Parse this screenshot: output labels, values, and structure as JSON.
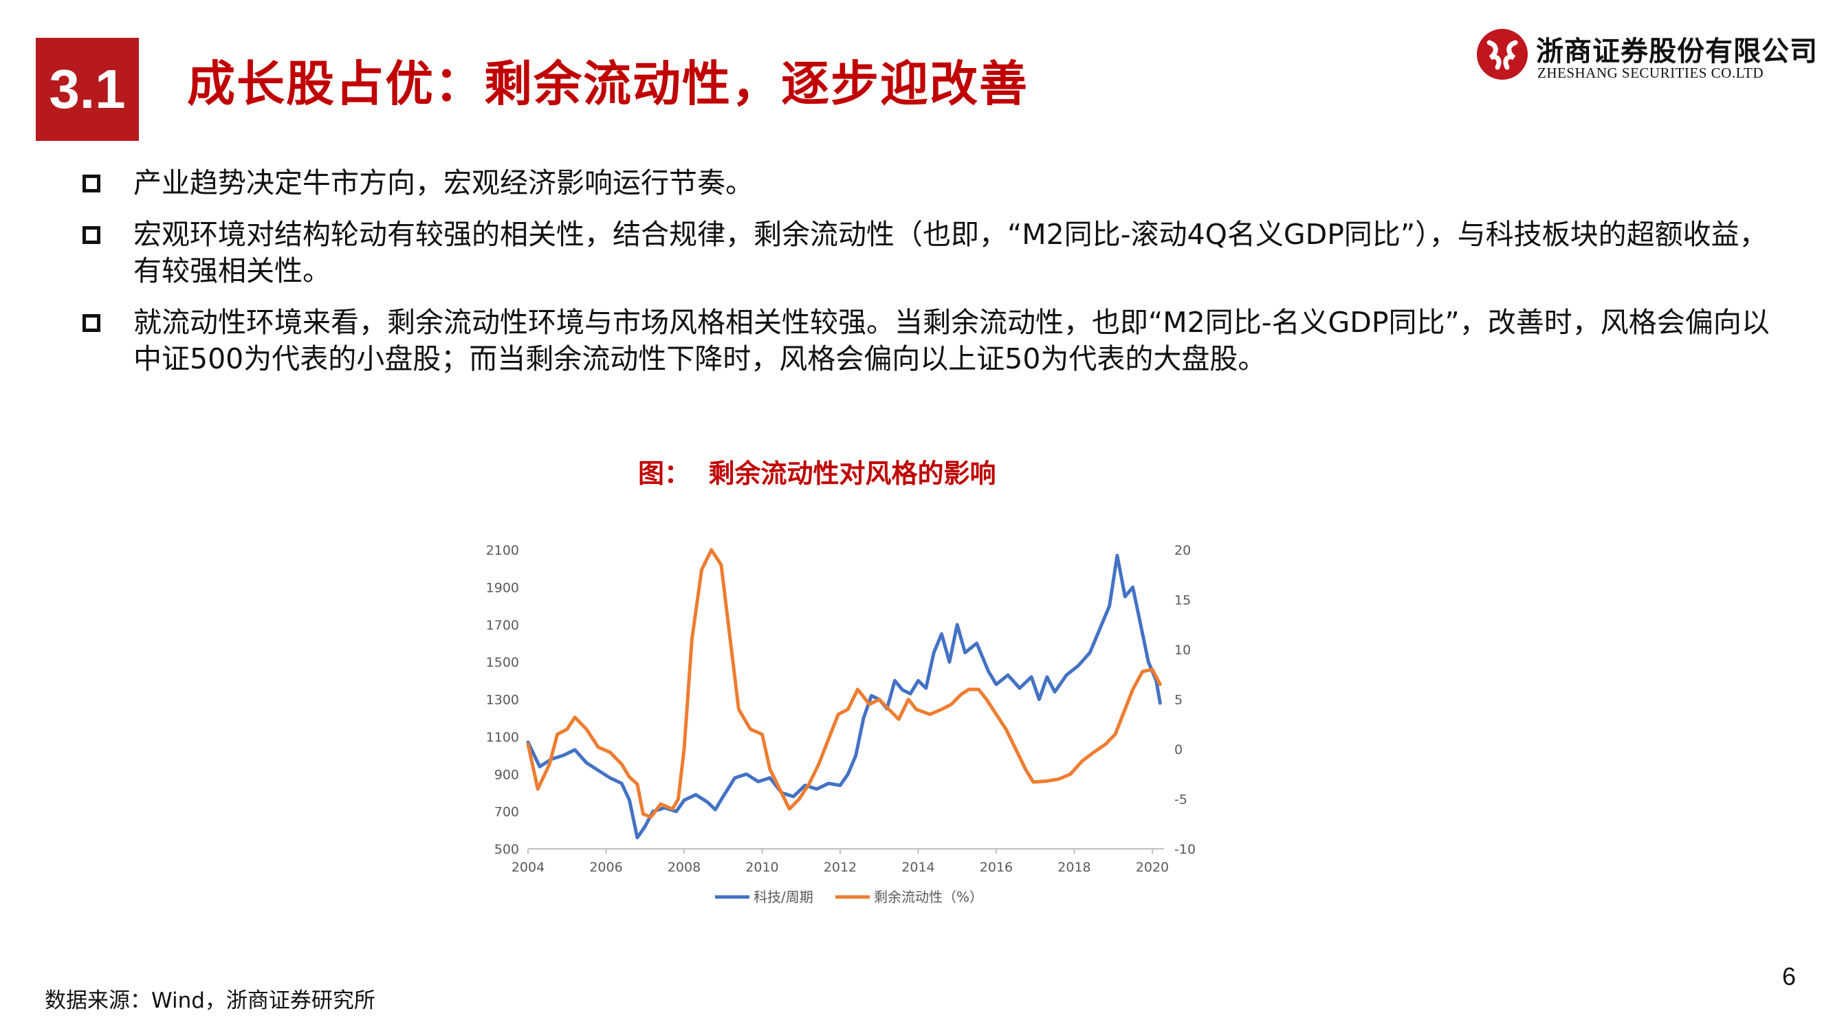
{
  "header": {
    "section_number": "3.1",
    "title": "成长股占优：剩余流动性，逐步迎改善"
  },
  "logo": {
    "name_cn": "浙商证券股份有限公司",
    "name_en": "ZHESHANG SECURITIES CO.LTD",
    "brand_color": "#c0161d"
  },
  "bullets": [
    "产业趋势决定牛市方向，宏观经济影响运行节奏。",
    "宏观环境对结构轮动有较强的相关性，结合规律，剩余流动性（也即，“M2同比-滚动4Q名义GDP同比”），与科技板块的超额收益，有较强相关性。",
    "就流动性环境来看，剩余流动性环境与市场风格相关性较强。当剩余流动性，也即“M2同比-名义GDP同比”，改善时，风格会偏向以中证500为代表的小盘股；而当剩余流动性下降时，风格会偏向以上证50为代表的大盘股。"
  ],
  "figure_title": "图：  剩余流动性对风格的影响",
  "chart_data": {
    "type": "line",
    "x_ticks": [
      "2004",
      "2006",
      "2008",
      "2010",
      "2012",
      "2014",
      "2016",
      "2018",
      "2020"
    ],
    "xlim": [
      2004,
      2020.3
    ],
    "y_left_ticks": [
      "2100",
      "1900",
      "1700",
      "1500",
      "1300",
      "1100",
      "900",
      "700",
      "500"
    ],
    "y_left_lim": [
      500,
      2100
    ],
    "y_right_ticks": [
      "20",
      "15",
      "10",
      "5",
      "0",
      "-5",
      "-10"
    ],
    "y_right_lim": [
      -10,
      20
    ],
    "grid": false,
    "legend_position": "bottom",
    "series": [
      {
        "name": "科技/周期",
        "axis": "left",
        "color": "#4472c4",
        "points": [
          [
            2004.0,
            1070
          ],
          [
            2004.3,
            940
          ],
          [
            2004.6,
            980
          ],
          [
            2004.9,
            1000
          ],
          [
            2005.2,
            1030
          ],
          [
            2005.5,
            960
          ],
          [
            2005.8,
            920
          ],
          [
            2006.1,
            880
          ],
          [
            2006.4,
            850
          ],
          [
            2006.6,
            760
          ],
          [
            2006.8,
            560
          ],
          [
            2007.0,
            620
          ],
          [
            2007.2,
            700
          ],
          [
            2007.5,
            720
          ],
          [
            2007.8,
            700
          ],
          [
            2008.0,
            760
          ],
          [
            2008.3,
            790
          ],
          [
            2008.6,
            750
          ],
          [
            2008.8,
            710
          ],
          [
            2009.0,
            780
          ],
          [
            2009.3,
            880
          ],
          [
            2009.6,
            900
          ],
          [
            2009.9,
            860
          ],
          [
            2010.2,
            880
          ],
          [
            2010.5,
            800
          ],
          [
            2010.8,
            780
          ],
          [
            2011.1,
            840
          ],
          [
            2011.4,
            820
          ],
          [
            2011.7,
            850
          ],
          [
            2012.0,
            840
          ],
          [
            2012.2,
            900
          ],
          [
            2012.4,
            1000
          ],
          [
            2012.6,
            1200
          ],
          [
            2012.8,
            1320
          ],
          [
            2013.0,
            1300
          ],
          [
            2013.2,
            1250
          ],
          [
            2013.4,
            1400
          ],
          [
            2013.6,
            1350
          ],
          [
            2013.8,
            1330
          ],
          [
            2014.0,
            1400
          ],
          [
            2014.2,
            1360
          ],
          [
            2014.4,
            1550
          ],
          [
            2014.6,
            1650
          ],
          [
            2014.8,
            1500
          ],
          [
            2015.0,
            1700
          ],
          [
            2015.2,
            1550
          ],
          [
            2015.5,
            1600
          ],
          [
            2015.8,
            1450
          ],
          [
            2016.0,
            1380
          ],
          [
            2016.3,
            1430
          ],
          [
            2016.6,
            1360
          ],
          [
            2016.9,
            1420
          ],
          [
            2017.1,
            1300
          ],
          [
            2017.3,
            1420
          ],
          [
            2017.5,
            1340
          ],
          [
            2017.8,
            1430
          ],
          [
            2018.1,
            1480
          ],
          [
            2018.4,
            1550
          ],
          [
            2018.7,
            1700
          ],
          [
            2018.9,
            1800
          ],
          [
            2019.1,
            2070
          ],
          [
            2019.3,
            1850
          ],
          [
            2019.5,
            1900
          ],
          [
            2019.7,
            1700
          ],
          [
            2019.9,
            1500
          ],
          [
            2020.1,
            1400
          ],
          [
            2020.2,
            1280
          ]
        ]
      },
      {
        "name": "剩余流动性（%）",
        "axis": "right",
        "color": "#ed7d31",
        "points": [
          [
            2004.0,
            0.5
          ],
          [
            2004.25,
            -4.0
          ],
          [
            2004.55,
            -1.5
          ],
          [
            2004.75,
            1.5
          ],
          [
            2005.0,
            2.0
          ],
          [
            2005.2,
            3.2
          ],
          [
            2005.5,
            2.0
          ],
          [
            2005.8,
            0.2
          ],
          [
            2006.1,
            -0.3
          ],
          [
            2006.4,
            -1.5
          ],
          [
            2006.6,
            -2.8
          ],
          [
            2006.8,
            -3.5
          ],
          [
            2006.95,
            -6.5
          ],
          [
            2007.15,
            -6.8
          ],
          [
            2007.4,
            -5.5
          ],
          [
            2007.7,
            -6.0
          ],
          [
            2007.85,
            -5.0
          ],
          [
            2008.0,
            0.0
          ],
          [
            2008.2,
            11.0
          ],
          [
            2008.45,
            18.0
          ],
          [
            2008.7,
            20.0
          ],
          [
            2008.95,
            18.5
          ],
          [
            2009.15,
            12.0
          ],
          [
            2009.4,
            4.0
          ],
          [
            2009.7,
            2.0
          ],
          [
            2010.0,
            1.5
          ],
          [
            2010.2,
            -2.0
          ],
          [
            2010.45,
            -4.0
          ],
          [
            2010.7,
            -6.0
          ],
          [
            2010.95,
            -5.0
          ],
          [
            2011.2,
            -3.5
          ],
          [
            2011.45,
            -1.5
          ],
          [
            2011.75,
            1.5
          ],
          [
            2011.95,
            3.5
          ],
          [
            2012.2,
            4.0
          ],
          [
            2012.45,
            6.0
          ],
          [
            2012.75,
            4.5
          ],
          [
            2013.0,
            5.0
          ],
          [
            2013.25,
            4.0
          ],
          [
            2013.5,
            3.0
          ],
          [
            2013.75,
            5.0
          ],
          [
            2013.95,
            4.0
          ],
          [
            2014.3,
            3.5
          ],
          [
            2014.6,
            4.0
          ],
          [
            2014.85,
            4.5
          ],
          [
            2015.1,
            5.5
          ],
          [
            2015.3,
            6.0
          ],
          [
            2015.55,
            6.0
          ],
          [
            2015.75,
            5.0
          ],
          [
            2016.0,
            3.5
          ],
          [
            2016.25,
            2.0
          ],
          [
            2016.5,
            0.0
          ],
          [
            2016.75,
            -2.0
          ],
          [
            2016.95,
            -3.3
          ],
          [
            2017.3,
            -3.2
          ],
          [
            2017.6,
            -3.0
          ],
          [
            2017.9,
            -2.5
          ],
          [
            2018.2,
            -1.2
          ],
          [
            2018.5,
            -0.3
          ],
          [
            2018.8,
            0.5
          ],
          [
            2019.05,
            1.5
          ],
          [
            2019.25,
            3.5
          ],
          [
            2019.5,
            6.0
          ],
          [
            2019.75,
            7.8
          ],
          [
            2020.0,
            8.0
          ],
          [
            2020.2,
            6.5
          ]
        ]
      }
    ]
  },
  "source": "数据来源：Wind，浙商证券研究所",
  "page_number": "6"
}
